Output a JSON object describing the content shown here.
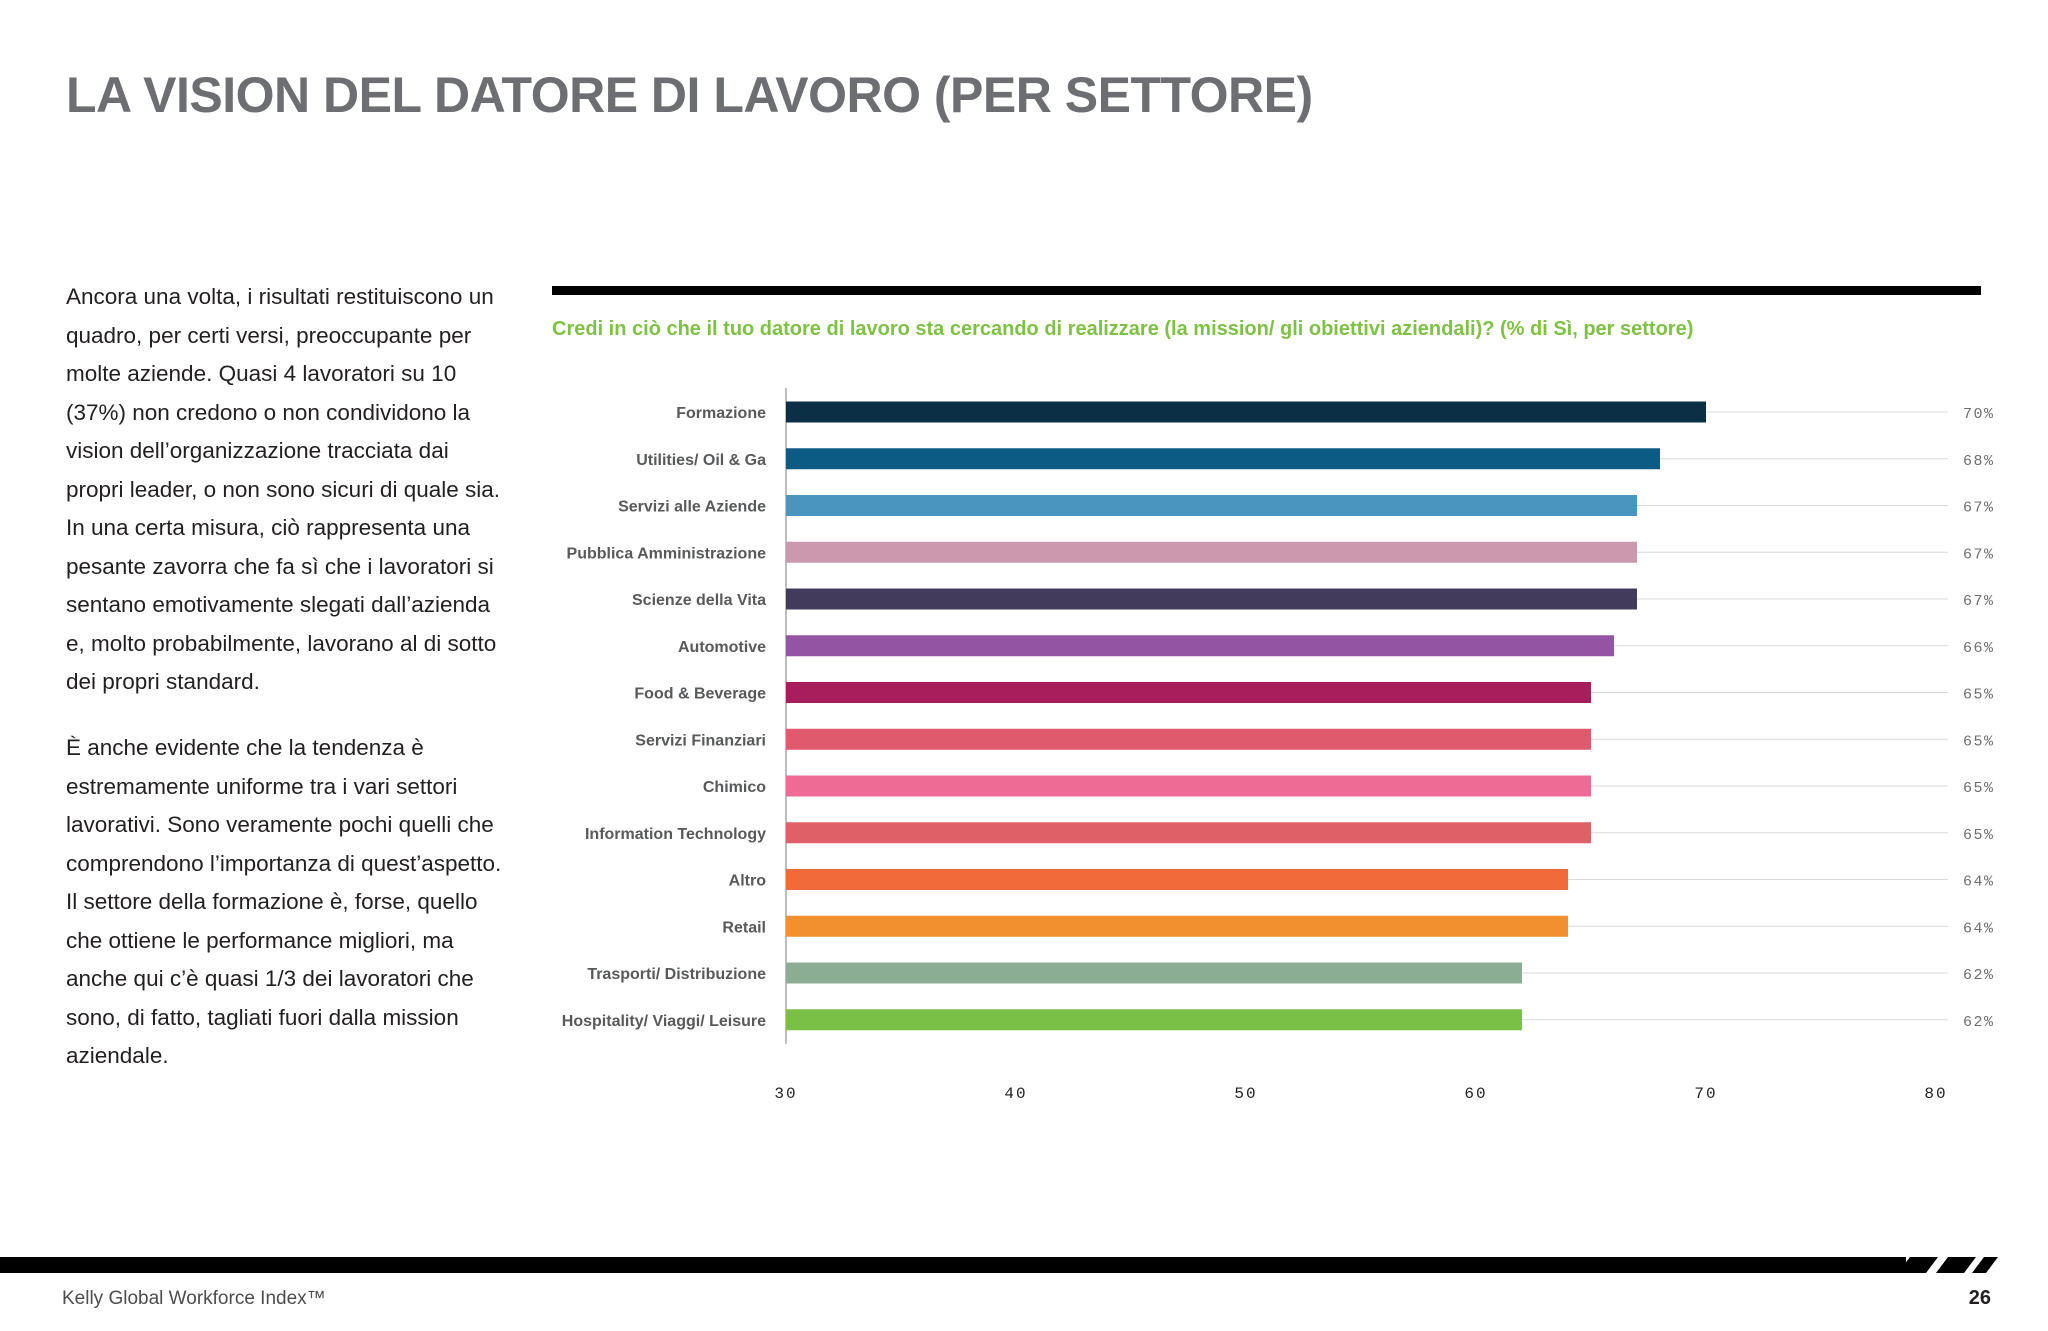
{
  "page": {
    "title": "LA VISION DEL DATORE DI LAVORO (PER SETTORE)",
    "paragraphs": [
      "Ancora una volta, i risultati restituiscono un quadro, per certi versi, preoccupante per molte aziende. Quasi 4 lavoratori su 10  (37%) non credono o non condividono la vision dell’organizzazione tracciata dai propri leader, o non sono sicuri di quale sia. In una certa misura, ciò rappresenta una pesante zavorra che fa sì che i lavoratori si sentano emotivamente slegati dall’azienda e, molto probabilmente, lavorano al di sotto dei propri standard.",
      "È anche evidente che la tendenza è estremamente uniforme tra i vari settori lavorativi. Sono veramente pochi quelli che comprendono l’importanza di quest’aspetto. Il settore della formazione è, forse, quello che ottiene le performance migliori, ma anche qui c’è quasi 1/3 dei lavoratori che sono, di fatto, tagliati fuori dalla mission aziendale."
    ]
  },
  "footer": {
    "brand": "Kelly Global Workforce Index™",
    "page_number": "26"
  },
  "chart_data": {
    "type": "bar",
    "orientation": "horizontal",
    "title": "Credi in ciò che il tuo datore di lavoro sta cercando di realizzare (la mission/ gli obiettivi aziendali)? (% di Sì, per settore)",
    "xlim": [
      30,
      80
    ],
    "x_ticks": [
      "30",
      "40",
      "50",
      "60",
      "70",
      "80"
    ],
    "grid": true,
    "categories": [
      "Formazione",
      "Utilities/ Oil & Ga",
      "Servizi alle Aziende",
      "Pubblica Amministrazione",
      "Scienze della Vita",
      "Automotive",
      "Food & Beverage",
      "Servizi Finanziari",
      "Chimico",
      "Information Technology",
      "Altro",
      "Retail",
      "Trasporti/ Distribuzione",
      "Hospitality/ Viaggi/ Leisure"
    ],
    "values": [
      70,
      68,
      67,
      67,
      67,
      66,
      65,
      65,
      65,
      65,
      64,
      64,
      62,
      62
    ],
    "value_labels": [
      "70%",
      "68%",
      "67%",
      "67%",
      "67%",
      "66%",
      "65%",
      "65%",
      "65%",
      "65%",
      "64%",
      "64%",
      "62%",
      "62%"
    ],
    "colors": [
      "#0b2f45",
      "#0b5b85",
      "#4a95c0",
      "#cc98ae",
      "#433b5c",
      "#9355a3",
      "#a81e5c",
      "#df5a6d",
      "#ee6b95",
      "#df6167",
      "#f06a3a",
      "#f28f2f",
      "#8aad94",
      "#7abf46"
    ]
  }
}
